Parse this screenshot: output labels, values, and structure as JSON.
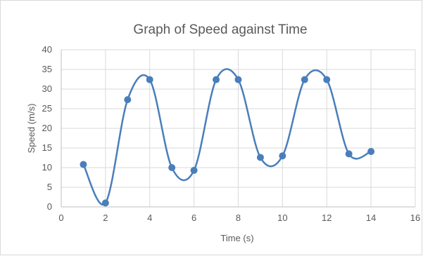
{
  "chart_data": {
    "type": "scatter",
    "title": "Graph of Speed against Time",
    "xlabel": "Time (s)",
    "ylabel": "Speed  (m/s)",
    "xlim": [
      0,
      16
    ],
    "ylim": [
      0,
      40
    ],
    "x_ticks": [
      0,
      2,
      4,
      6,
      8,
      10,
      12,
      14,
      16
    ],
    "y_ticks": [
      0,
      5,
      10,
      15,
      20,
      25,
      30,
      35,
      40
    ],
    "grid": "vertical and horizontal",
    "legend": "none",
    "line_style": "smoothed",
    "series": [
      {
        "color": "#4a7ebb",
        "x": [
          1,
          2,
          3,
          4,
          5,
          6,
          7,
          8,
          9,
          10,
          11,
          12,
          13,
          14
        ],
        "y": [
          10.8,
          1,
          27.3,
          32.4,
          10,
          9.3,
          32.4,
          32.4,
          12.6,
          13,
          32.4,
          32.4,
          13.5,
          14.1
        ]
      }
    ]
  }
}
